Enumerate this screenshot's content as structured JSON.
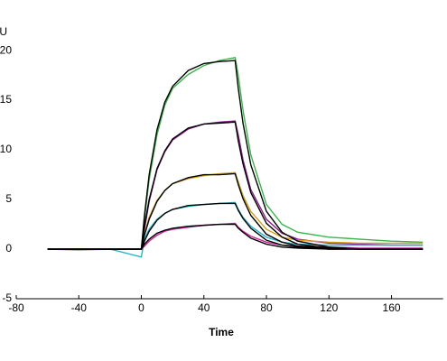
{
  "chart_data": {
    "type": "line",
    "x_label": "Time",
    "y_label": "RU",
    "x": [
      -60,
      -40,
      -20,
      0,
      2,
      5,
      10,
      15,
      20,
      30,
      40,
      50,
      60,
      62,
      65,
      70,
      80,
      90,
      100,
      120,
      140,
      160,
      180
    ],
    "series": [
      {
        "color": "#3cb44b",
        "values": [
          0,
          0,
          0,
          0,
          3,
          7,
          11.5,
          14.5,
          16.2,
          17.6,
          18.5,
          19.0,
          19.3,
          17.5,
          14,
          9.5,
          4.5,
          2.5,
          1.7,
          1.2,
          1.0,
          0.8,
          0.7
        ]
      },
      {
        "color": "#8b1a8b",
        "values": [
          0,
          0,
          0,
          0,
          2,
          4.8,
          8,
          9.8,
          11,
          12.1,
          12.6,
          12.8,
          12.9,
          11.5,
          9,
          6,
          3,
          1.6,
          1.0,
          0.6,
          0.5,
          0.4,
          0.4
        ]
      },
      {
        "color": "#d4a017",
        "values": [
          0,
          -0.1,
          0,
          0,
          1.5,
          3.2,
          4.9,
          5.9,
          6.6,
          7.1,
          7.4,
          7.6,
          7.7,
          6.8,
          5.4,
          3.8,
          2,
          1.2,
          0.9,
          0.7,
          0.6,
          0.6,
          0.6
        ]
      },
      {
        "color": "#1fb5c9",
        "values": [
          0,
          0,
          0,
          -0.8,
          1,
          2,
          3,
          3.6,
          4,
          4.3,
          4.5,
          4.6,
          4.7,
          4,
          3.2,
          2.3,
          1.2,
          0.7,
          0.5,
          0.4,
          0.4,
          0.4,
          0.4
        ]
      },
      {
        "color": "#cc2299",
        "values": [
          0,
          0,
          0,
          0,
          0.3,
          0.8,
          1.4,
          1.8,
          2.0,
          2.2,
          2.4,
          2.5,
          2.6,
          2.2,
          1.8,
          1.3,
          0.7,
          0.4,
          0.3,
          0.2,
          0.1,
          0.1,
          0.1
        ]
      },
      {
        "color": "#000000",
        "values": [
          0,
          0,
          0,
          0,
          3.4,
          7.5,
          12.0,
          14.8,
          16.4,
          18.0,
          18.7,
          18.9,
          19.0,
          16.2,
          12.7,
          8.5,
          3.8,
          1.7,
          0.8,
          0.2,
          0,
          0,
          0
        ]
      },
      {
        "color": "#000000",
        "values": [
          0,
          0,
          0,
          0,
          2.3,
          5.0,
          8.1,
          9.9,
          11.1,
          12.2,
          12.6,
          12.7,
          12.8,
          10.9,
          8.6,
          5.7,
          2.6,
          1.2,
          0.5,
          0.1,
          0,
          0,
          0
        ]
      },
      {
        "color": "#000000",
        "values": [
          0,
          0,
          0,
          0,
          1.4,
          3.0,
          4.8,
          5.9,
          6.6,
          7.2,
          7.5,
          7.5,
          7.6,
          6.5,
          5.1,
          3.4,
          1.5,
          0.7,
          0.3,
          0.1,
          0,
          0,
          0
        ]
      },
      {
        "color": "#000000",
        "values": [
          0,
          0,
          0,
          0,
          0.8,
          1.8,
          2.9,
          3.6,
          4.0,
          4.4,
          4.5,
          4.6,
          4.6,
          3.9,
          3.1,
          2.1,
          0.9,
          0.4,
          0.2,
          0,
          0,
          0,
          0
        ]
      },
      {
        "color": "#000000",
        "values": [
          0,
          0,
          0,
          0,
          0.5,
          1.0,
          1.6,
          1.9,
          2.1,
          2.3,
          2.4,
          2.5,
          2.5,
          2.1,
          1.7,
          1.1,
          0.5,
          0.2,
          0.1,
          0,
          0,
          0,
          0
        ]
      }
    ],
    "xlim": [
      -80,
      193
    ],
    "xticks": [
      -80,
      -40,
      0,
      40,
      80,
      120,
      160
    ],
    "ylim": [
      -5,
      21.5
    ],
    "yticks": [
      -5,
      0,
      5,
      10,
      15,
      20
    ]
  }
}
